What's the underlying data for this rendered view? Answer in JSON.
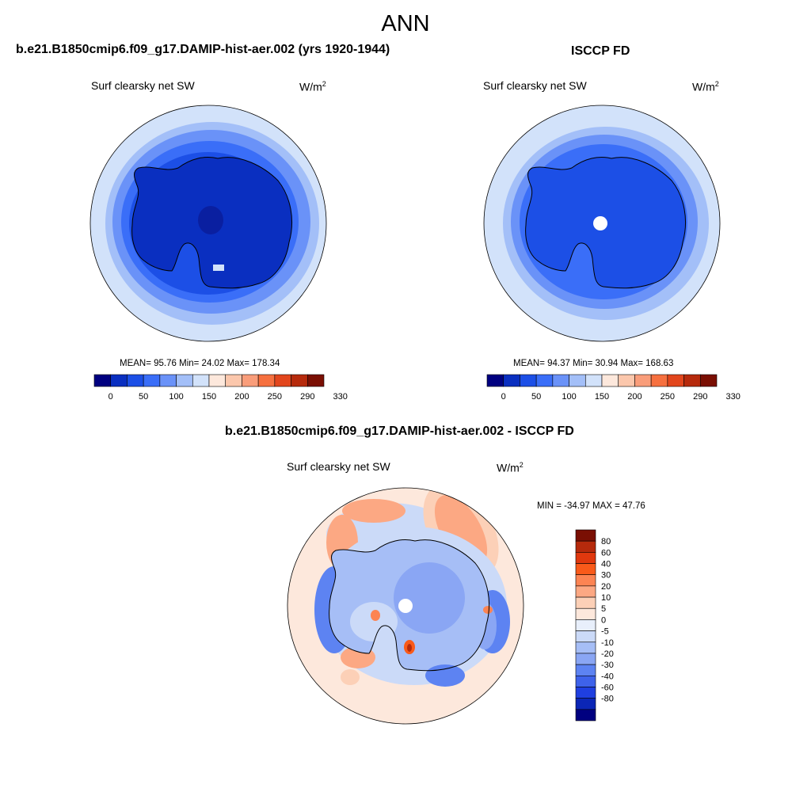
{
  "season": "ANN",
  "panels": [
    {
      "title": "b.e21.B1850cmip6.f09_g17.DAMIP-hist-aer.002 (yrs 1920-1944)",
      "variable": "Surf clearsky net SW",
      "units_base": "W/m",
      "units_exp": "2",
      "stats": "MEAN=  95.76  Min=  24.02  Max= 178.34"
    },
    {
      "title": "ISCCP FD",
      "variable": "Surf clearsky net SW",
      "units_base": "W/m",
      "units_exp": "2",
      "stats": "MEAN=  94.37  Min=  30.94  Max= 168.63"
    }
  ],
  "diff_panel": {
    "title": "b.e21.B1850cmip6.f09_g17.DAMIP-hist-aer.002 - ISCCP FD",
    "variable": "Surf clearsky net SW",
    "units_base": "W/m",
    "units_exp": "2",
    "stats": "MIN = -34.97 MAX =  47.76"
  },
  "colorbar_h": {
    "colors": [
      "#000080",
      "#0a2fc0",
      "#1c4fe6",
      "#3a6ef8",
      "#6a92f8",
      "#a3bff8",
      "#d2e2fa",
      "#fde8dc",
      "#fbc7ac",
      "#f99d7a",
      "#f6703f",
      "#e2461d",
      "#b62a0c",
      "#7a0f03"
    ],
    "labels": [
      "0",
      "50",
      "100",
      "150",
      "200",
      "250",
      "290",
      "330"
    ]
  },
  "colorbar_v": {
    "colors": [
      "#7a0f03",
      "#b62a0c",
      "#e0380e",
      "#f95a1a",
      "#fc8453",
      "#fca883",
      "#fcd0b7",
      "#fde8dc",
      "#e8effb",
      "#cbdaf8",
      "#a6bef6",
      "#8aa6f4",
      "#5d83f2",
      "#3e62ea",
      "#1f3fe0",
      "#0b26b6",
      "#000080"
    ],
    "labels": [
      "80",
      "60",
      "40",
      "30",
      "20",
      "10",
      "5",
      "0",
      "-5",
      "-10",
      "-20",
      "-30",
      "-40",
      "-60",
      "-80"
    ]
  }
}
